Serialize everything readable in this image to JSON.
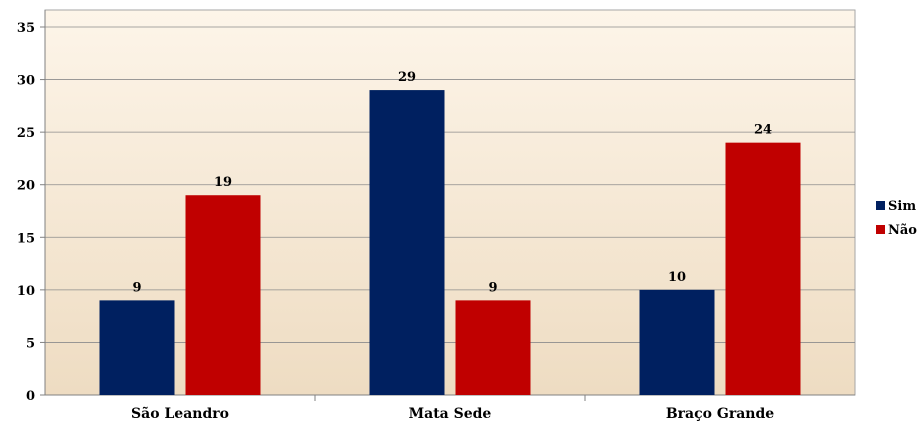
{
  "chart_data": {
    "type": "bar",
    "title": "",
    "xlabel": "",
    "ylabel": "",
    "categories": [
      "São Leandro",
      "Mata Sede",
      "Braço Grande"
    ],
    "series": [
      {
        "name": "Sim",
        "values": [
          9,
          29,
          10
        ],
        "color": "#002060"
      },
      {
        "name": "Não",
        "values": [
          19,
          9,
          24
        ],
        "color": "#C00000"
      }
    ],
    "ylim": [
      0,
      35
    ],
    "yticks": [
      0,
      5,
      10,
      15,
      20,
      25,
      30,
      35
    ],
    "grid": true,
    "legend_position": "right",
    "data_labels": true,
    "background": "light beige gradient"
  }
}
